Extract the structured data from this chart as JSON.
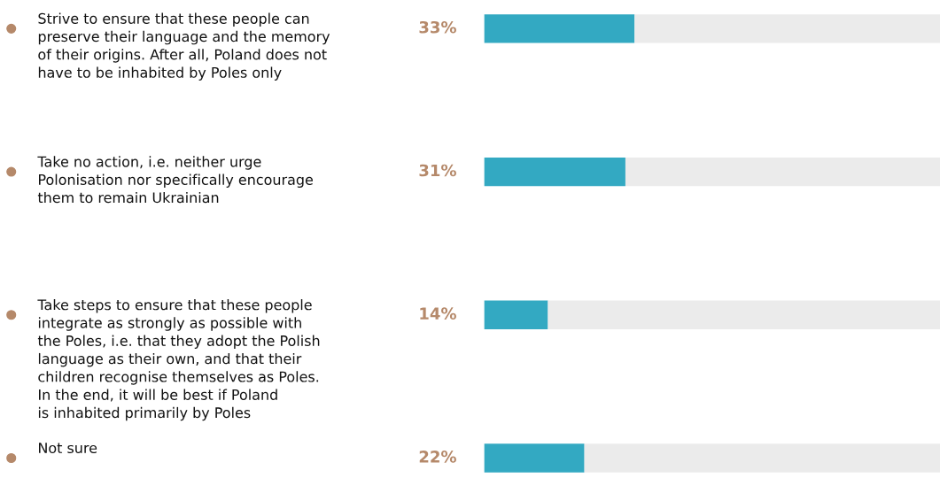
{
  "chart_data": {
    "type": "bar",
    "orientation": "horizontal",
    "stacked": true,
    "categories": [
      "Strive to ensure that these people can\npreserve their language and the memory\nof their origins. After all, Poland does not\nhave to be inhabited by Poles only",
      "Take no action, i.e. neither urge\nPolonisation nor specifically encourage\nthem to remain Ukrainian",
      "Take steps to ensure that these people\nintegrate as strongly as possible with\nthe Poles, i.e. that they adopt the Polish\nlanguage as their own, and that their\nchildren recognise themselves as Poles.\nIn the end, it will be best if Poland\nis inhabited primarily by Poles",
      "Not sure"
    ],
    "series": [
      {
        "color": "#33a9c2",
        "values": [
          33,
          31,
          14,
          22
        ],
        "value_labels": [
          "33%",
          "31%",
          "14%",
          "22%"
        ]
      },
      {
        "color": "#ebebeb",
        "values": [
          67,
          69,
          86,
          78
        ]
      }
    ],
    "xlim": [
      0,
      100
    ]
  }
}
